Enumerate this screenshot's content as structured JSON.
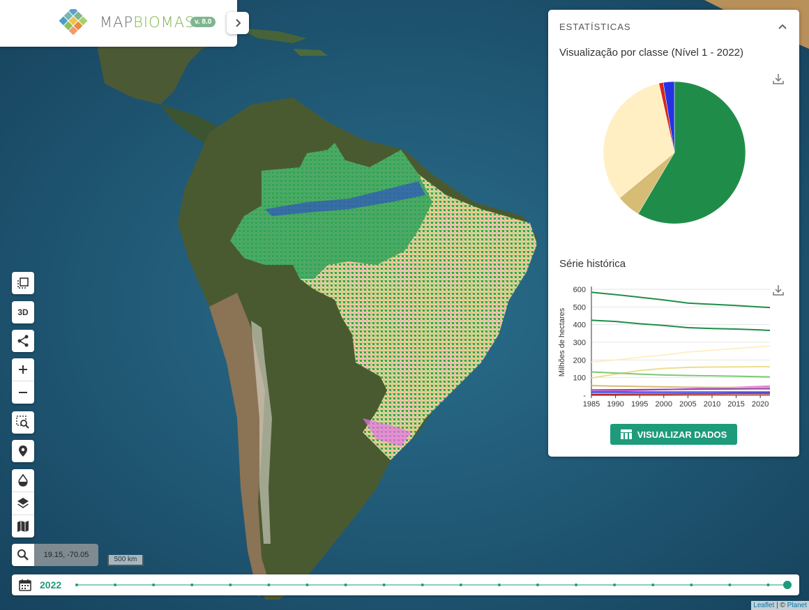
{
  "app": {
    "logo_text_a": "MAP",
    "logo_text_b": "BIOMAS",
    "version": "v. 8.0"
  },
  "stats": {
    "title": "ESTATÍSTICAS",
    "pie_title": "Visualização por classe (Nível 1 - 2022)",
    "series_title": "Série histórica",
    "button_label": "VISUALIZAR DADOS"
  },
  "chart_data": [
    {
      "type": "pie",
      "title": "Visualização por classe (Nível 1 - 2022)",
      "values": [
        58.5,
        5.5,
        32.5,
        1.0,
        2.5
      ],
      "colors": [
        "#1f8d49",
        "#d6bc74",
        "#ffefc3",
        "#d5271c",
        "#2532e4"
      ]
    },
    {
      "type": "line",
      "title": "Série histórica",
      "ylabel": "Milhões de hectares",
      "ylim": [
        0,
        600
      ],
      "yticks": [
        "600",
        "500",
        "400",
        "300",
        "200",
        "100",
        "-"
      ],
      "xticks": [
        "1985",
        "1990",
        "1995",
        "2000",
        "2005",
        "2010",
        "2015",
        "2020"
      ],
      "x": [
        1985,
        1990,
        1995,
        2000,
        2005,
        2010,
        2015,
        2020,
        2022
      ],
      "series": [
        {
          "color": "#1f8d49",
          "values": [
            583,
            570,
            555,
            540,
            522,
            515,
            508,
            500,
            497
          ]
        },
        {
          "color": "#1f8d49",
          "values": [
            425,
            418,
            405,
            395,
            383,
            378,
            375,
            370,
            367
          ]
        },
        {
          "color": "#ffefc3",
          "values": [
            188,
            200,
            215,
            228,
            245,
            255,
            265,
            275,
            280
          ]
        },
        {
          "color": "#edde8e",
          "values": [
            98,
            120,
            140,
            152,
            158,
            160,
            161,
            162,
            162
          ]
        },
        {
          "color": "#7dc975",
          "values": [
            132,
            126,
            120,
            115,
            112,
            110,
            108,
            105,
            104
          ]
        },
        {
          "color": "#e974ed",
          "values": [
            20,
            24,
            28,
            32,
            36,
            40,
            45,
            50,
            52
          ]
        },
        {
          "color": "#d6bc74",
          "values": [
            55,
            52,
            50,
            48,
            46,
            45,
            44,
            44,
            44
          ]
        },
        {
          "color": "#2532e4",
          "values": [
            18,
            18,
            18,
            18,
            18,
            18,
            18,
            18,
            18
          ]
        },
        {
          "color": "#d5271c",
          "values": [
            6,
            6,
            7,
            7,
            8,
            8,
            9,
            9,
            9
          ]
        },
        {
          "color": "#8e44ad",
          "values": [
            30,
            31,
            32,
            33,
            34,
            35,
            36,
            37,
            37
          ]
        }
      ]
    }
  ],
  "tools": {
    "three_d": "3D",
    "coords": "19.15, -70.05",
    "scale": "500 km"
  },
  "timeline": {
    "year": "2022",
    "start": 1985,
    "end": 2022,
    "selected": 2022
  },
  "attribution": {
    "leaflet": "Leaflet",
    "sep": " | © ",
    "planet": "Planet"
  }
}
